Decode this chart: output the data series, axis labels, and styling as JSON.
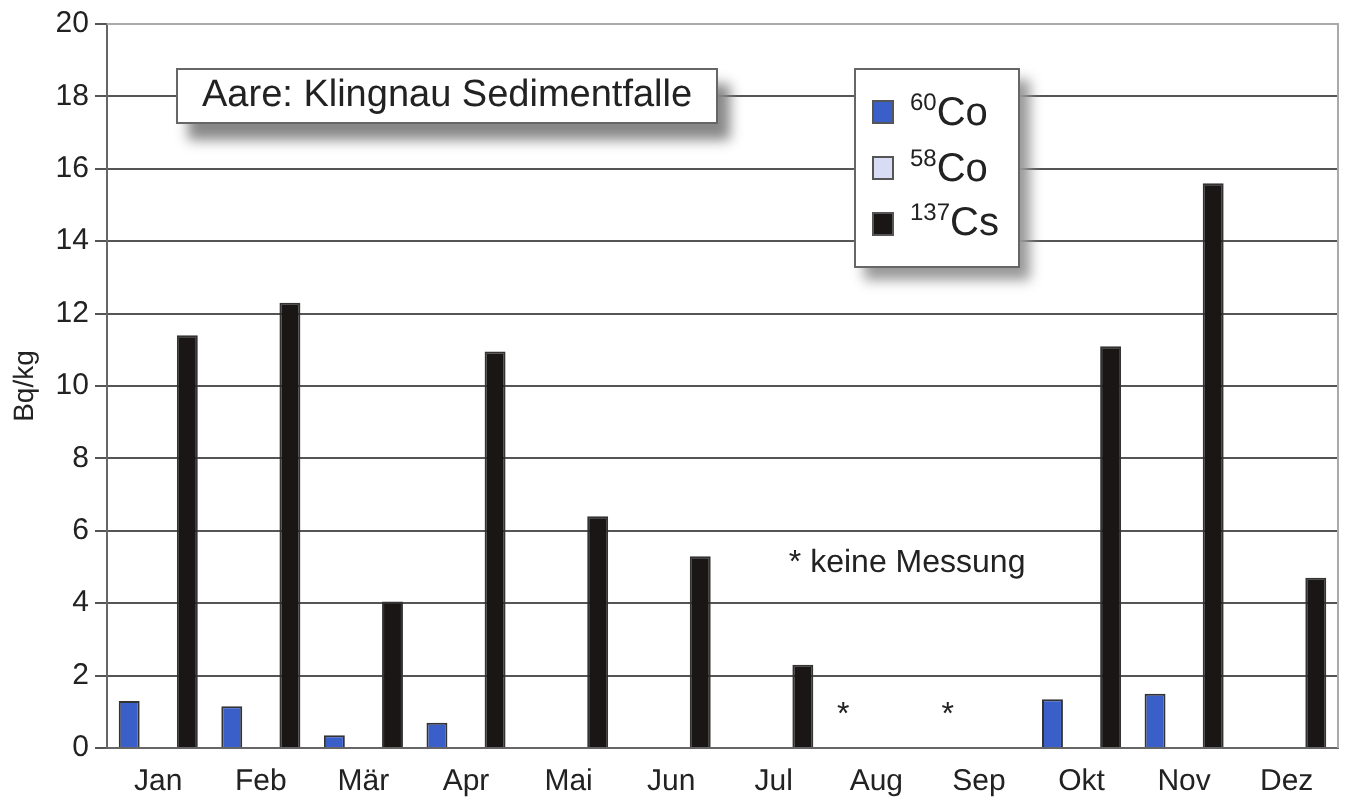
{
  "chart_data": {
    "type": "bar",
    "title": "Aare: Klingnau Sedimentfalle",
    "ylabel": "Bq/kg",
    "categories": [
      "Jan",
      "Feb",
      "Mär",
      "Apr",
      "Mai",
      "Jun",
      "Jul",
      "Aug",
      "Sep",
      "Okt",
      "Nov",
      "Dez"
    ],
    "series": [
      {
        "name": "$^{60}$Co",
        "color": "#3a5fc8",
        "values": [
          1.3,
          1.15,
          0.35,
          0.7,
          null,
          null,
          null,
          null,
          null,
          1.35,
          1.5,
          null
        ]
      },
      {
        "name": "$^{58}$Co",
        "color": "#d8dcf4",
        "values": [
          null,
          null,
          null,
          null,
          null,
          null,
          null,
          null,
          null,
          null,
          null,
          null
        ]
      },
      {
        "name": "$^{137}$Cs",
        "color": "#1a1616",
        "values": [
          11.4,
          12.3,
          4.05,
          10.95,
          6.4,
          5.3,
          2.3,
          null,
          null,
          11.1,
          15.6,
          4.7
        ]
      }
    ],
    "ylim": [
      0,
      20
    ],
    "yticks": [
      0,
      2,
      4,
      6,
      8,
      10,
      12,
      14,
      16,
      18,
      20
    ],
    "grid": "y",
    "legend": "top right",
    "annotations": [
      "* keine Messung",
      "*",
      "*"
    ]
  }
}
